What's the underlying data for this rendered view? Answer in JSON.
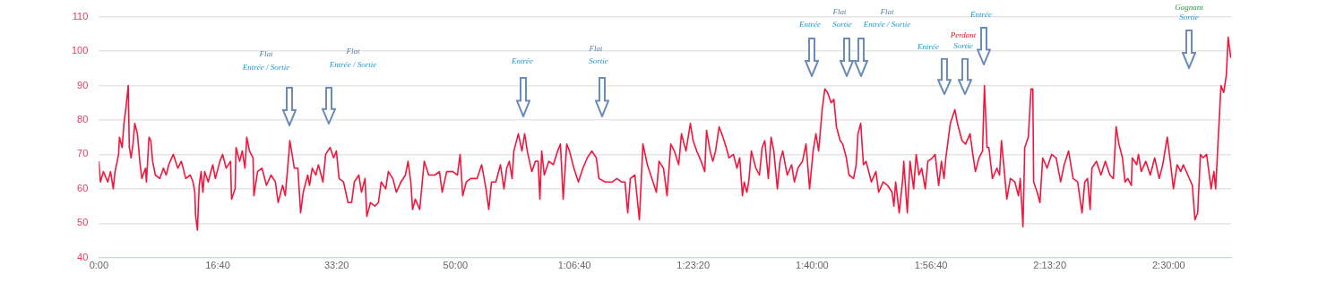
{
  "chart_data": {
    "type": "line",
    "x": [
      0,
      13,
      38,
      75,
      98,
      121,
      136,
      166,
      173,
      196,
      211,
      226,
      247,
      256,
      271,
      287,
      302,
      324,
      347,
      362,
      392,
      400,
      422,
      437,
      452,
      475,
      513,
      543,
      566,
      588,
      626,
      664,
      694,
      731,
      769,
      792,
      807,
      814,
      829,
      844,
      860,
      875,
      890,
      920,
      958,
      980,
      1018,
      1041,
      1071,
      1108,
      1116,
      1146,
      1154,
      1184,
      1206,
      1229,
      1244,
      1267,
      1297,
      1304,
      1335,
      1372,
      1410,
      1448,
      1485,
      1508,
      1546,
      1568,
      1598,
      1606,
      1621,
      1644,
      1674,
      1697,
      1719,
      1757,
      1772,
      1795,
      1825,
      1847,
      1885,
      1908,
      1945,
      1975,
      1998,
      2021,
      2058,
      2096,
      2126,
      2149,
      2187,
      2209,
      2239,
      2254,
      2285,
      2322,
      2352,
      2375,
      2413,
      2435,
      2473,
      2503,
      2541,
      2579,
      2601,
      2624,
      2639,
      2662,
      2699,
      2737,
      2775,
      2828,
      2865,
      2888,
      2926,
      2978,
      3016,
      3039,
      3061,
      3091,
      3129,
      3182,
      3220,
      3257,
      3280,
      3303,
      3340,
      3378,
      3408,
      3431,
      3453,
      3476,
      3491,
      3529,
      3559,
      3582,
      3604,
      3642,
      3672,
      3695,
      3710,
      3725,
      3747,
      3785,
      3823,
      3860,
      3883,
      3906,
      3936,
      3959,
      3996,
      4034,
      4072,
      4109,
      4147,
      4185,
      4207,
      4260,
      4298,
      4320,
      4358,
      4396,
      4426,
      4449,
      4471,
      4509,
      4547,
      4577,
      4614,
      4652,
      4690,
      4713,
      4750,
      4780,
      4811,
      4841,
      4878,
      4901,
      4939,
      4976,
      4999,
      5029,
      5067,
      5097,
      5112,
      5142,
      5165,
      5188,
      5218,
      5240,
      5278,
      5301,
      5338,
      5368,
      5391,
      5414,
      5429,
      5451,
      5467,
      5489,
      5527,
      5557,
      5580,
      5602,
      5632,
      5655,
      5678,
      5708,
      5730,
      5753,
      5791,
      5828,
      5851,
      5881,
      5919,
      5949,
      5979,
      6009,
      6032,
      6055,
      6085,
      6107,
      6130,
      6160,
      6183,
      6205,
      6236,
      6258,
      6288,
      6311,
      6349,
      6371,
      6386,
      6409,
      6432,
      6454,
      6499,
      6537,
      6560,
      6598,
      6635,
      6673,
      6688,
      6703,
      6733,
      6763,
      6771,
      6801,
      6824,
      6854,
      6876,
      6899,
      6922,
      6952,
      6974,
      7012,
      7035,
      7065,
      7088,
      7110,
      7125,
      7163,
      7201,
      7223,
      7261,
      7291,
      7329,
      7352,
      7374,
      7404,
      7434,
      7450,
      7472,
      7487,
      7517,
      7555,
      7577,
      7593,
      7615,
      7638,
      7668,
      7706,
      7736,
      7751,
      7774,
      7789,
      7819,
      7842,
      7857,
      7864,
      7894,
      7917,
      7940,
      7977,
      8015,
      8053,
      8091,
      8121,
      8158,
      8196,
      8234,
      8271,
      8294,
      8317,
      8339,
      8354,
      8392,
      8430,
      8467,
      8505,
      8535,
      8558,
      8581,
      8611,
      8633,
      8656,
      8686,
      8694,
      8731,
      8746,
      8769,
      8807,
      8845,
      8882,
      8920,
      8950,
      8988,
      9010,
      9040,
      9071,
      9101,
      9123,
      9161,
      9199,
      9221,
      9244,
      9267,
      9289,
      9319,
      9357,
      9380,
      9395,
      9410,
      9440,
      9463,
      9485,
      9500,
      9523
    ],
    "series": [
      {
        "color": "#f0163c",
        "values": [
          68,
          62,
          65,
          62,
          65,
          60,
          65,
          70,
          75,
          72,
          79,
          83,
          90,
          72,
          69,
          73,
          79,
          76,
          67,
          63,
          66,
          62,
          75,
          74,
          68,
          64,
          63,
          66,
          64,
          67,
          70,
          66,
          68,
          63,
          64,
          62,
          59,
          52,
          48,
          61,
          65,
          59,
          65,
          62,
          67,
          63,
          68,
          70,
          66,
          68,
          57,
          60,
          72,
          68,
          71,
          66,
          75,
          71,
          69,
          58,
          65,
          66,
          61,
          64,
          62,
          56,
          61,
          58,
          70,
          74,
          71,
          66,
          66,
          53,
          59,
          64,
          61,
          66,
          64,
          67,
          62,
          70,
          72,
          69,
          71,
          63,
          62,
          56,
          56,
          62,
          64,
          59,
          63,
          52,
          56,
          55,
          56,
          62,
          60,
          65,
          63,
          59,
          62,
          64,
          68,
          62,
          54,
          57,
          54,
          68,
          64,
          64,
          65,
          59,
          65,
          65,
          64,
          70,
          58,
          62,
          63,
          63,
          67,
          60,
          54,
          62,
          62,
          67,
          60,
          66,
          68,
          63,
          71,
          76,
          71,
          76,
          71,
          65,
          68,
          68,
          57,
          71,
          64,
          68,
          67,
          71,
          73,
          57,
          73,
          71,
          66,
          62,
          66,
          69,
          71,
          69,
          63,
          62,
          62,
          62,
          63,
          62,
          62,
          53,
          63,
          64,
          51,
          73,
          67,
          63,
          59,
          68,
          66,
          58,
          73,
          71,
          67,
          76,
          71,
          79,
          74,
          71,
          68,
          65,
          77,
          71,
          68,
          71,
          78,
          76,
          72,
          69,
          70,
          66,
          69,
          58,
          62,
          59,
          62,
          71,
          66,
          64,
          72,
          74,
          63,
          75,
          71,
          60,
          68,
          71,
          64,
          67,
          62,
          66,
          68,
          73,
          60,
          71,
          76,
          71,
          83,
          89,
          88,
          85,
          86,
          78,
          74,
          73,
          69,
          64,
          63,
          67,
          76,
          79,
          67,
          68,
          62,
          65,
          59,
          62,
          61,
          59,
          55,
          62,
          53,
          63,
          68,
          53,
          68,
          60,
          70,
          64,
          66,
          60,
          68,
          69,
          70,
          61,
          68,
          63,
          69,
          79,
          83,
          79,
          74,
          73,
          76,
          70,
          65,
          69,
          71,
          90,
          72,
          72,
          63,
          66,
          64,
          74,
          66,
          57,
          63,
          62,
          58,
          63,
          49,
          72,
          75,
          89,
          89,
          62,
          59,
          56,
          69,
          66,
          70,
          69,
          62,
          67,
          71,
          63,
          62,
          53,
          62,
          63,
          54,
          66,
          68,
          64,
          68,
          64,
          63,
          78,
          73,
          69,
          62,
          63,
          61,
          69,
          67,
          70,
          65,
          68,
          64,
          69,
          63,
          67,
          75,
          69,
          60,
          67,
          65,
          67,
          64,
          61,
          51,
          53,
          70,
          69,
          70,
          60,
          65,
          60,
          70,
          90,
          88,
          93,
          104,
          98
        ]
      }
    ],
    "xlim": [
      0,
      9525
    ],
    "xticks": [
      {
        "value": 0,
        "label": "0:00"
      },
      {
        "value": 1000,
        "label": "16:40"
      },
      {
        "value": 2000,
        "label": "33:20"
      },
      {
        "value": 3000,
        "label": "50:00"
      },
      {
        "value": 4000,
        "label": "1:06:40"
      },
      {
        "value": 5000,
        "label": "1:23:20"
      },
      {
        "value": 6000,
        "label": "1:40:00"
      },
      {
        "value": 7000,
        "label": "1:56:40"
      },
      {
        "value": 8000,
        "label": "2:13:20"
      },
      {
        "value": 9000,
        "label": "2:30:00"
      }
    ],
    "ylim": [
      40,
      110
    ],
    "yticks": [
      40,
      50,
      60,
      70,
      80,
      90,
      100,
      110
    ],
    "grid": "y",
    "legend": false,
    "marker": "none",
    "line_style": "solid",
    "annotations": [
      "Flat",
      "Entrée / Sortie",
      "Flat",
      "Entrée / Sortie",
      "Entrée",
      "Flat",
      "Sortie",
      "Entrée",
      "Flat",
      "Sortie",
      "Flat",
      "Entrée / Sortie",
      "Entrée",
      "Perdant",
      "Sortie",
      "Entrée",
      "Gagnant",
      "Sortie"
    ]
  }
}
